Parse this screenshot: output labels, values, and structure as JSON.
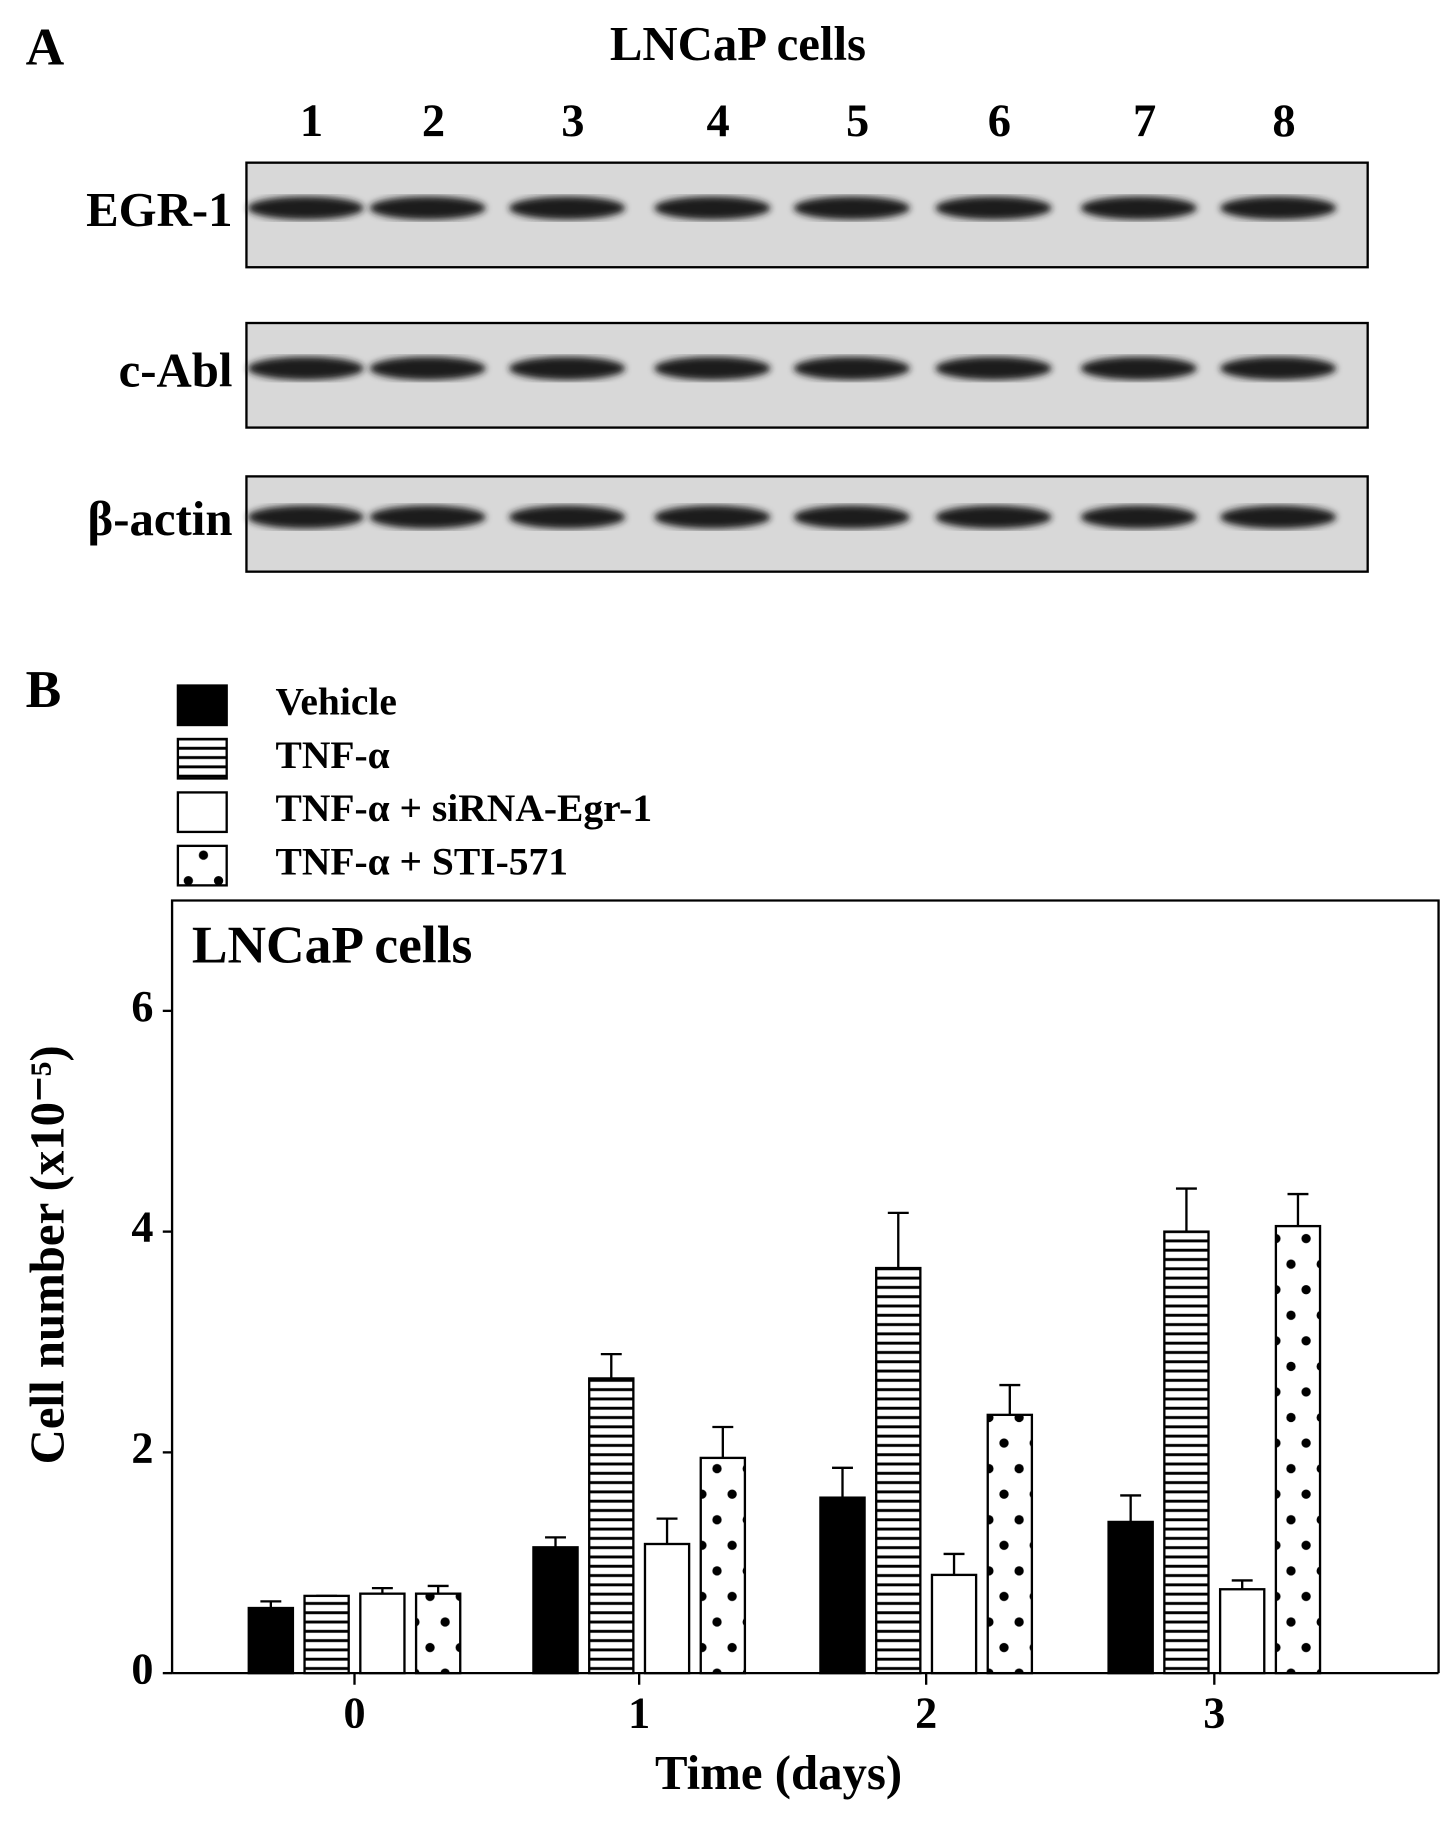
{
  "panel_a": {
    "label": "A",
    "title": "LNCaP cells",
    "lanes": [
      "1",
      "2",
      "3",
      "4",
      "5",
      "6",
      "7",
      "8"
    ],
    "rows": [
      "EGR-1",
      "c-Abl",
      "β-actin"
    ]
  },
  "chart_data": {
    "type": "bar",
    "panel_label": "B",
    "title": "LNCaP cells",
    "xlabel": "Time (days)",
    "ylabel": "Cell number (x10⁻⁵)",
    "categories": [
      "0",
      "1",
      "2",
      "3"
    ],
    "series": [
      {
        "name": "Vehicle",
        "pattern": "solid",
        "color": "#000000",
        "values": [
          0.59,
          1.14,
          1.59,
          1.37
        ],
        "errors": [
          0.06,
          0.09,
          0.27,
          0.24
        ]
      },
      {
        "name": "TNF-α",
        "pattern": "horizontal-lines",
        "color": "#000000",
        "values": [
          0.7,
          2.67,
          3.67,
          4.0
        ],
        "errors": [
          0,
          0.22,
          0.5,
          0.39
        ]
      },
      {
        "name": "TNF-α + siRNA-Egr-1",
        "pattern": "open",
        "color": "#000000",
        "values": [
          0.72,
          1.17,
          0.89,
          0.76
        ],
        "errors": [
          0.05,
          0.23,
          0.19,
          0.08
        ]
      },
      {
        "name": "TNF-α + STI-571",
        "pattern": "dots",
        "color": "#000000",
        "values": [
          0.72,
          1.95,
          2.34,
          4.05
        ],
        "errors": [
          0.07,
          0.28,
          0.27,
          0.29
        ]
      }
    ],
    "ylim": [
      0,
      7
    ],
    "yticks": [
      0,
      2,
      4,
      6
    ]
  }
}
